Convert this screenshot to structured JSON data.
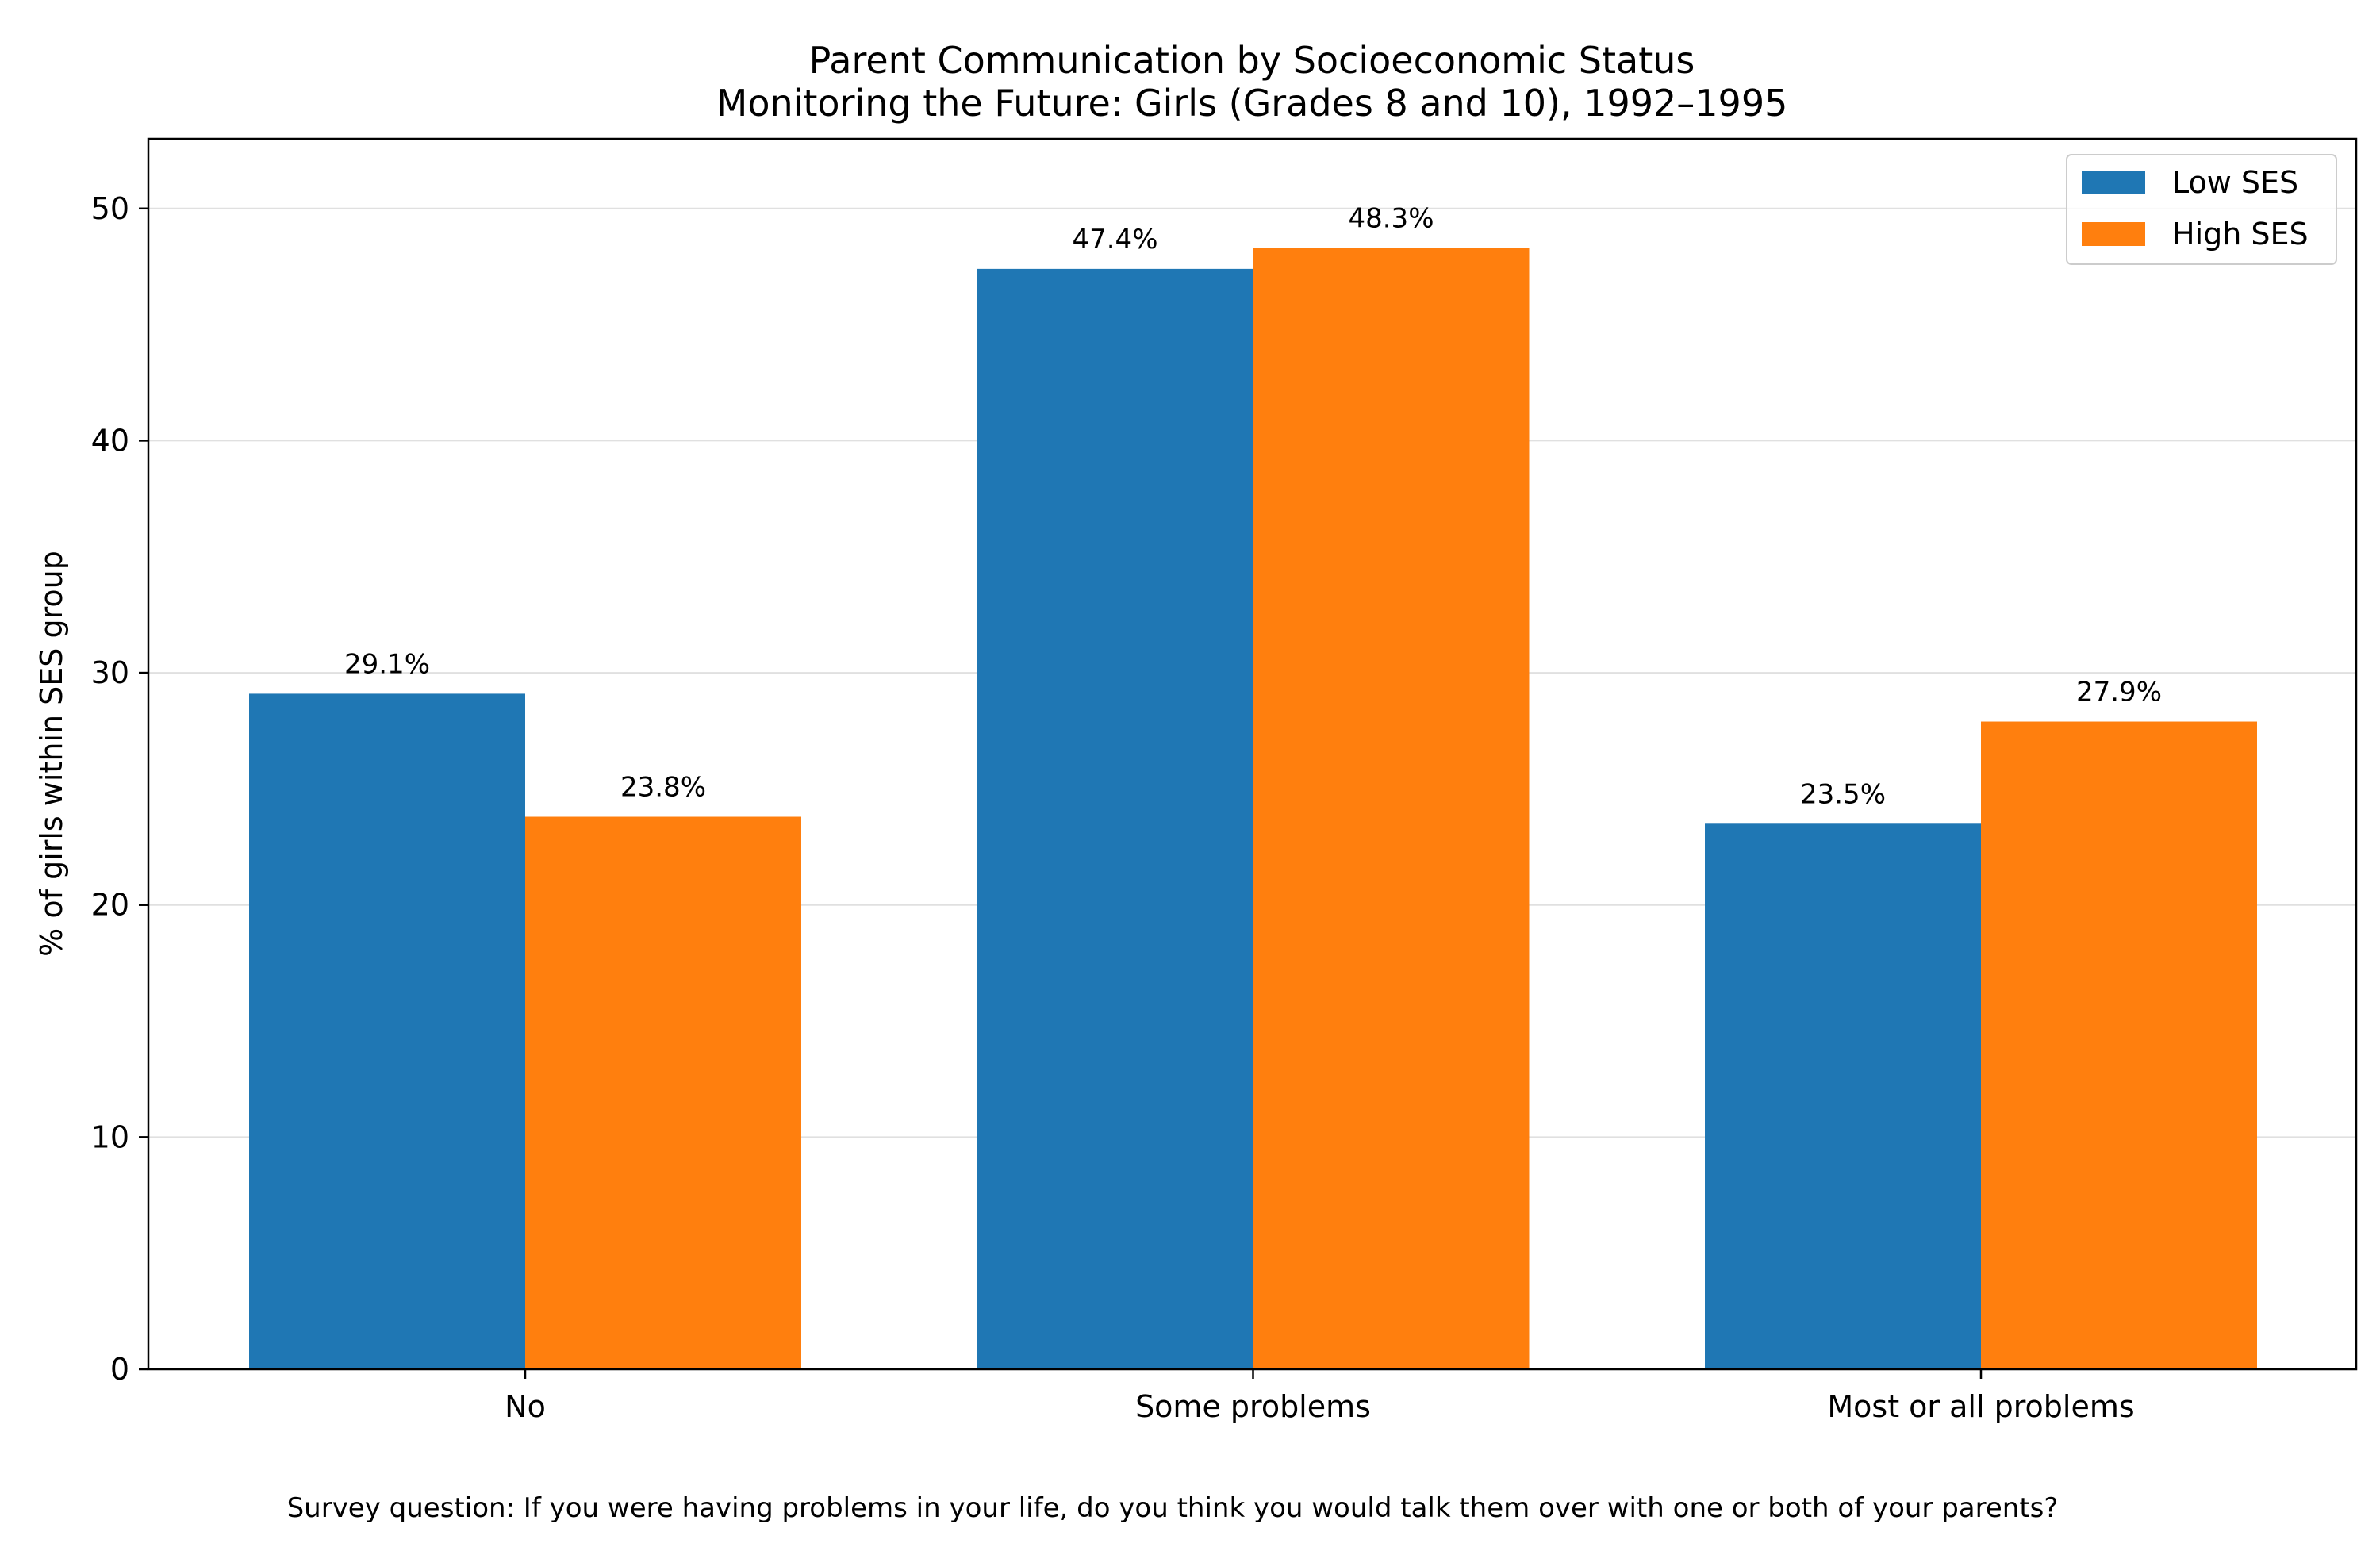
{
  "chart_data": {
    "type": "bar",
    "title": "Parent Communication by Socioeconomic Status",
    "subtitle": "Monitoring the Future: Girls (Grades 8 and 10), 1992–1995",
    "xlabel": "",
    "ylabel": "% of girls within SES group",
    "categories": [
      "No",
      "Some problems",
      "Most or all problems"
    ],
    "series": [
      {
        "name": "Low SES",
        "color": "#1f77b4",
        "values": [
          29.1,
          47.4,
          23.5
        ],
        "labels": [
          "29.1%",
          "47.4%",
          "23.5%"
        ]
      },
      {
        "name": "High SES",
        "color": "#ff7f0e",
        "values": [
          23.8,
          48.3,
          27.9
        ],
        "labels": [
          "23.8%",
          "48.3%",
          "27.9%"
        ]
      }
    ],
    "ylim": [
      0,
      53
    ],
    "yticks": [
      0,
      10,
      20,
      30,
      40,
      50
    ],
    "grid": true,
    "legend_position": "top-right",
    "footnote": "Survey question: If you were having problems in your life, do you think you would talk them over with one or both of your parents?"
  }
}
